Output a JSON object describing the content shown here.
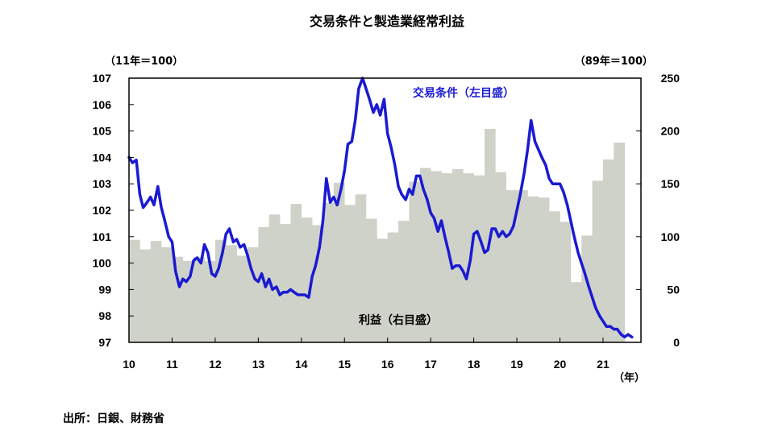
{
  "chart_data": {
    "type": "bar+line",
    "title": "交易条件と製造業経常利益",
    "left_unit": "（11年＝100）",
    "right_unit": "（89年＝100）",
    "x_unit": "（年）",
    "source": "出所：日銀、財務省",
    "x_ticks": [
      "10",
      "11",
      "12",
      "13",
      "14",
      "15",
      "16",
      "17",
      "18",
      "19",
      "20",
      "21"
    ],
    "x_range": [
      2010.0,
      2021.88
    ],
    "y_left_range": [
      97,
      107
    ],
    "y_left_ticks": [
      "107",
      "106",
      "105",
      "104",
      "103",
      "102",
      "101",
      "100",
      "99",
      "98",
      "97"
    ],
    "y_right_range": [
      0,
      250
    ],
    "y_right_ticks": [
      "250",
      "200",
      "150",
      "100",
      "50",
      "0"
    ],
    "colors": {
      "bars": "#cfd2c8",
      "line": "#1a1ad2"
    },
    "bars_series": {
      "name": "利益（右目盛）",
      "x": [
        2010.0,
        2010.25,
        2010.5,
        2010.75,
        2011.0,
        2011.25,
        2011.5,
        2011.75,
        2012.0,
        2012.25,
        2012.5,
        2012.75,
        2013.0,
        2013.25,
        2013.5,
        2013.75,
        2014.0,
        2014.25,
        2014.5,
        2014.75,
        2015.0,
        2015.25,
        2015.5,
        2015.75,
        2016.0,
        2016.25,
        2016.5,
        2016.75,
        2017.0,
        2017.25,
        2017.5,
        2017.75,
        2018.0,
        2018.25,
        2018.5,
        2018.75,
        2019.0,
        2019.25,
        2019.5,
        2019.75,
        2020.0,
        2020.25,
        2020.5,
        2020.75,
        2021.0,
        2021.25
      ],
      "values": [
        97,
        88,
        96,
        90,
        81,
        77,
        81,
        77,
        97,
        92,
        82,
        90,
        109,
        121,
        112,
        131,
        118,
        111,
        132,
        151,
        130,
        140,
        117,
        98,
        104,
        115,
        152,
        165,
        162,
        160,
        164,
        160,
        158,
        202,
        161,
        144,
        144,
        138,
        137,
        124,
        114,
        57,
        101,
        153,
        173,
        189
      ]
    },
    "line_series": {
      "name": "交易条件（左目盛）",
      "x": [
        2010.0,
        2010.08,
        2010.17,
        2010.25,
        2010.33,
        2010.42,
        2010.5,
        2010.58,
        2010.67,
        2010.75,
        2010.83,
        2010.92,
        2011.0,
        2011.08,
        2011.17,
        2011.25,
        2011.33,
        2011.42,
        2011.5,
        2011.58,
        2011.67,
        2011.75,
        2011.83,
        2011.92,
        2012.0,
        2012.08,
        2012.17,
        2012.25,
        2012.33,
        2012.42,
        2012.5,
        2012.58,
        2012.67,
        2012.75,
        2012.83,
        2012.92,
        2013.0,
        2013.08,
        2013.17,
        2013.25,
        2013.33,
        2013.42,
        2013.5,
        2013.58,
        2013.67,
        2013.75,
        2013.83,
        2013.92,
        2014.0,
        2014.08,
        2014.17,
        2014.25,
        2014.33,
        2014.42,
        2014.5,
        2014.58,
        2014.67,
        2014.75,
        2014.83,
        2014.92,
        2015.0,
        2015.08,
        2015.17,
        2015.25,
        2015.33,
        2015.42,
        2015.5,
        2015.58,
        2015.67,
        2015.75,
        2015.83,
        2015.92,
        2016.0,
        2016.08,
        2016.17,
        2016.25,
        2016.33,
        2016.42,
        2016.5,
        2016.58,
        2016.67,
        2016.75,
        2016.83,
        2016.92,
        2017.0,
        2017.08,
        2017.17,
        2017.25,
        2017.33,
        2017.42,
        2017.5,
        2017.58,
        2017.67,
        2017.75,
        2017.83,
        2017.92,
        2018.0,
        2018.08,
        2018.17,
        2018.25,
        2018.33,
        2018.42,
        2018.5,
        2018.58,
        2018.67,
        2018.75,
        2018.83,
        2018.92,
        2019.0,
        2019.08,
        2019.17,
        2019.25,
        2019.33,
        2019.42,
        2019.5,
        2019.58,
        2019.67,
        2019.75,
        2019.83,
        2019.92,
        2020.0,
        2020.08,
        2020.17,
        2020.25,
        2020.33,
        2020.42,
        2020.5,
        2020.58,
        2020.67,
        2020.75,
        2020.83,
        2020.92,
        2021.0,
        2021.08,
        2021.17,
        2021.25,
        2021.33,
        2021.42,
        2021.5,
        2021.58,
        2021.67
      ],
      "values": [
        104.0,
        103.8,
        103.9,
        102.6,
        102.1,
        102.3,
        102.5,
        102.2,
        102.9,
        102.1,
        101.6,
        101.0,
        100.8,
        99.7,
        99.1,
        99.4,
        99.3,
        99.5,
        100.1,
        100.2,
        100.0,
        100.7,
        100.4,
        99.6,
        99.5,
        99.8,
        100.4,
        101.1,
        101.3,
        100.8,
        100.9,
        100.6,
        100.7,
        100.3,
        99.8,
        99.4,
        99.3,
        99.6,
        99.1,
        99.4,
        99.0,
        99.1,
        98.8,
        98.9,
        98.9,
        99.0,
        98.9,
        98.8,
        98.8,
        98.8,
        98.7,
        99.5,
        99.9,
        100.6,
        101.6,
        103.2,
        102.3,
        102.5,
        102.2,
        102.8,
        103.5,
        104.5,
        104.6,
        105.4,
        106.6,
        107.0,
        106.6,
        106.2,
        105.7,
        106.0,
        105.6,
        106.2,
        104.9,
        104.4,
        103.7,
        102.9,
        102.6,
        102.4,
        102.8,
        102.6,
        103.3,
        103.3,
        102.8,
        102.4,
        101.9,
        101.7,
        101.2,
        101.6,
        101.0,
        100.4,
        99.8,
        99.9,
        99.9,
        99.7,
        99.4,
        100.1,
        101.1,
        101.2,
        100.8,
        100.4,
        100.5,
        101.3,
        101.3,
        101.0,
        101.2,
        101.0,
        101.1,
        101.4,
        102.0,
        102.6,
        103.4,
        104.3,
        105.4,
        104.6,
        104.3,
        104.0,
        103.7,
        103.2,
        103.0,
        103.0,
        103.0,
        102.7,
        102.2,
        101.6,
        101.0,
        100.4,
        100.0,
        99.6,
        99.1,
        98.7,
        98.3,
        98.0,
        97.8,
        97.6,
        97.6,
        97.5,
        97.5,
        97.3,
        97.2,
        97.3,
        97.2
      ]
    },
    "labels": {
      "line": "交易条件（左目盛）",
      "bars": "利益（右目盛）"
    }
  }
}
